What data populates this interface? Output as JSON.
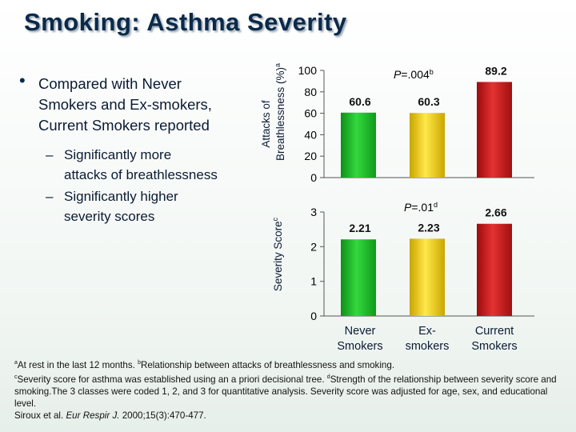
{
  "slide": {
    "title": "Smoking: Asthma Severity",
    "bullet_main": "Compared with Never Smokers and Ex-smokers, Current Smokers reported",
    "sub_bullets": [
      "Significantly more attacks of breathlessness",
      "Significantly higher severity scores"
    ]
  },
  "chart_data": [
    {
      "type": "bar",
      "categories": [
        "Never Smokers",
        "Ex-smokers",
        "Current Smokers"
      ],
      "values": [
        60.6,
        60.3,
        89.2
      ],
      "ylabel_line1": "Attacks of",
      "ylabel_line2": "Breathlessness (%)",
      "ylabel_sup": "a",
      "ylim": [
        0,
        100
      ],
      "yticks": [
        "0",
        "20",
        "40",
        "60",
        "80",
        "100"
      ],
      "ytick_values": [
        0,
        20,
        40,
        60,
        80,
        100
      ],
      "data_labels": [
        "60.6",
        "60.3",
        "89.2"
      ],
      "pvalue": "=.004",
      "pvalue_italic": "P",
      "pvalue_sup": "b",
      "grid": false,
      "colors": [
        "#1fbe2a",
        "#f0d21a",
        "#d11a1a"
      ]
    },
    {
      "type": "bar",
      "categories": [
        "Never Smokers",
        "Ex-smokers",
        "Current Smokers"
      ],
      "values": [
        2.21,
        2.23,
        2.66
      ],
      "ylabel": "Severity Score",
      "ylabel_sup": "c",
      "ylim": [
        0,
        3
      ],
      "yticks": [
        "0",
        "1",
        "2",
        "3"
      ],
      "ytick_values": [
        0,
        1,
        2,
        3
      ],
      "data_labels": [
        "2.21",
        "2.23",
        "2.66"
      ],
      "pvalue": "=.01",
      "pvalue_italic": "P",
      "pvalue_sup": "d",
      "grid": false,
      "colors": [
        "#1fbe2a",
        "#f0d21a",
        "#d11a1a"
      ]
    }
  ],
  "x_axis": {
    "labels": [
      [
        "Never",
        "Smokers"
      ],
      [
        "Ex-",
        "smokers"
      ],
      [
        "Current",
        "Smokers"
      ]
    ]
  },
  "footnotes": {
    "a_sup": "a",
    "a_text": "At rest in the last 12 months. ",
    "b_sup": "b",
    "b_text": "Relationship between attacks of breathlessness and smoking.",
    "c_sup": "c",
    "c_text": "Severity score for asthma was established using an a priori decisional tree. ",
    "d_sup": "d",
    "d_text": "Strength of the relationship between severity score and smoking.The 3 classes were coded 1, 2, and 3 for quantitative analysis. Severity score was adjusted for age, sex, and educational level.",
    "citation_pre": "Siroux et al. ",
    "citation_journal": "Eur Respir J.",
    "citation_post": " 2000;15(3):470-477."
  }
}
